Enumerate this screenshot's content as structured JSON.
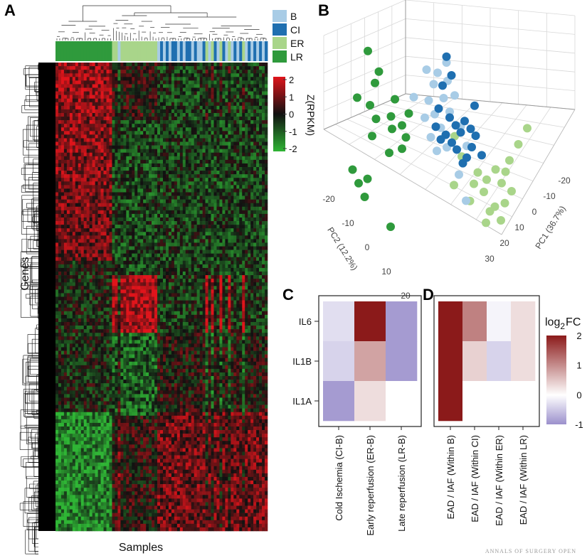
{
  "panels": {
    "A": "A",
    "B": "B",
    "C": "C",
    "D": "D"
  },
  "watermark": "ANNALS OF SURGERY OPEN",
  "chart_data": [
    {
      "id": "A",
      "type": "heatmap",
      "title": "",
      "xlabel": "Samples",
      "ylabel": "Genes",
      "colorbar": {
        "label": "Z(RPKM)",
        "ticks": [
          "2",
          "1",
          "0",
          "-1",
          "-2"
        ],
        "range": [
          -2,
          2
        ],
        "colors": {
          "low": "#2fb535",
          "mid": "#111111",
          "high": "#e0141b"
        }
      },
      "sample_groups": [
        {
          "label": "B",
          "color": "#a8cce6"
        },
        {
          "label": "CI",
          "color": "#1f6fb0"
        },
        {
          "label": "ER",
          "color": "#a9d58a"
        },
        {
          "label": "LR",
          "color": "#2f9a3c"
        }
      ],
      "column_annotation_order": [
        "LR",
        "LR",
        "LR",
        "LR",
        "LR",
        "LR",
        "LR",
        "LR",
        "LR",
        "LR",
        "LR",
        "LR",
        "LR",
        "LR",
        "LR",
        "LR",
        "LR",
        "LR",
        "LR",
        "LR",
        "ER",
        "ER",
        "B",
        "ER",
        "ER",
        "ER",
        "ER",
        "ER",
        "ER",
        "ER",
        "ER",
        "ER",
        "ER",
        "ER",
        "ER",
        "ER",
        "B",
        "CI",
        "B",
        "CI",
        "B",
        "CI",
        "CI",
        "B",
        "CI",
        "B",
        "CI",
        "CI",
        "B",
        "CI",
        "B",
        "B",
        "CI",
        "ER",
        "B",
        "ER",
        "CI",
        "B",
        "ER",
        "CI",
        "B",
        "ER",
        "B",
        "CI",
        "B",
        "CI",
        "ER",
        "B",
        "CI",
        "B",
        "CI",
        "B",
        "CI",
        "B",
        "CI"
      ],
      "value_blocks": [
        {
          "samples": "LR",
          "gene_region": "top",
          "mean_z": 1.5
        },
        {
          "samples": "LR",
          "gene_region": "bottom",
          "mean_z": -1.5
        },
        {
          "samples": "ER",
          "gene_region": "middle",
          "mean_z": 1.6
        },
        {
          "samples": "ER",
          "gene_region": "lower-middle",
          "mean_z": -1.2
        },
        {
          "samples": "B/CI",
          "gene_region": "bottom",
          "mean_z": 1.0
        },
        {
          "samples": "B/CI",
          "gene_region": "top",
          "mean_z": -0.5
        }
      ]
    },
    {
      "id": "B",
      "type": "scatter",
      "title": "",
      "xlabel": "PC1 (36.7%)",
      "ylabel": "PC2 (12.2%)",
      "zlabel": "",
      "pc1_ticks": [
        "-20",
        "-10",
        "0",
        "10",
        "20",
        "30"
      ],
      "pc2_ticks": [
        "-20",
        "-10",
        "0",
        "10",
        "20"
      ],
      "series": [
        {
          "name": "LR",
          "color": "#2f9a3c",
          "points": [
            [
              -10,
              25,
              6
            ],
            [
              -8,
              22,
              5
            ],
            [
              -9,
              20,
              4
            ],
            [
              -10,
              16,
              4
            ],
            [
              -13,
              17,
              2
            ],
            [
              -9,
              14,
              3
            ],
            [
              -10,
              11,
              2
            ],
            [
              -6,
              15,
              3
            ],
            [
              -4,
              14,
              2
            ],
            [
              -5,
              18,
              4
            ],
            [
              -2,
              16,
              5
            ],
            [
              -3,
              12,
              3
            ],
            [
              -4,
              10,
              2
            ],
            [
              -7,
              9,
              0
            ],
            [
              -15,
              5,
              -3
            ],
            [
              -14,
              3,
              -4
            ],
            [
              -12,
              4,
              -3
            ],
            [
              -13,
              1,
              -5
            ],
            [
              -8,
              -3,
              -6
            ],
            [
              -6,
              13,
              2
            ]
          ]
        },
        {
          "name": "ER",
          "color": "#a9d58a",
          "points": [
            [
              22,
              18,
              6
            ],
            [
              20,
              15,
              5
            ],
            [
              18,
              12,
              4
            ],
            [
              17,
              10,
              3
            ],
            [
              16,
              8,
              2
            ],
            [
              15,
              10,
              3
            ],
            [
              13,
              8,
              2
            ],
            [
              12,
              6,
              0
            ],
            [
              11,
              9,
              1
            ],
            [
              10,
              7,
              0
            ],
            [
              14,
              4,
              -1
            ],
            [
              13,
              3,
              -1
            ],
            [
              15,
              2,
              -2
            ],
            [
              12,
              1,
              -2
            ],
            [
              16,
              5,
              -1
            ],
            [
              8,
              11,
              2
            ],
            [
              7,
              14,
              4
            ],
            [
              9,
              4,
              -1
            ],
            [
              6,
              6,
              0
            ],
            [
              18,
              7,
              2
            ]
          ]
        },
        {
          "name": "B",
          "color": "#a8cce6",
          "points": [
            [
              4,
              24,
              6
            ],
            [
              6,
              26,
              7
            ],
            [
              3,
              22,
              5
            ],
            [
              5,
              20,
              5
            ],
            [
              2,
              19,
              5
            ],
            [
              7,
              21,
              4
            ],
            [
              3,
              17,
              4
            ],
            [
              1,
              16,
              4
            ],
            [
              4,
              15,
              3
            ],
            [
              6,
              18,
              4
            ],
            [
              2,
              13,
              3
            ],
            [
              5,
              12,
              2
            ],
            [
              8,
              16,
              3
            ],
            [
              3,
              11,
              2
            ],
            [
              9,
              13,
              2
            ],
            [
              7,
              8,
              0
            ],
            [
              8,
              4,
              -2
            ],
            [
              -1,
              19,
              5
            ],
            [
              6,
              23,
              6
            ],
            [
              2,
              24,
              7
            ]
          ]
        },
        {
          "name": "CI",
          "color": "#1f6fb0",
          "points": [
            [
              7,
              24,
              7
            ],
            [
              5,
              22,
              6
            ],
            [
              4,
              18,
              5
            ],
            [
              6,
              17,
              4
            ],
            [
              7,
              16,
              3
            ],
            [
              3,
              15,
              3
            ],
            [
              8,
              15,
              3
            ],
            [
              9,
              17,
              4
            ],
            [
              5,
              14,
              3
            ],
            [
              10,
              16,
              3
            ],
            [
              11,
              15,
              3
            ],
            [
              6,
              13,
              2
            ],
            [
              9,
              11,
              2
            ],
            [
              12,
              12,
              2
            ],
            [
              8,
              10,
              1
            ],
            [
              7,
              12,
              2
            ],
            [
              4,
              13,
              3
            ],
            [
              10,
              13,
              2
            ],
            [
              6,
              27,
              7
            ],
            [
              11,
              20,
              4
            ]
          ]
        }
      ]
    },
    {
      "id": "C",
      "type": "heatmap",
      "title": "",
      "rows": [
        "IL6",
        "IL1B",
        "IL1A"
      ],
      "columns": [
        "Cold Ischemia (CI-B)",
        "Early reperfusion (ER-B)",
        "Late reperfusion (LR-B)"
      ],
      "values": [
        [
          -0.3,
          2.0,
          -0.9
        ],
        [
          -0.4,
          0.8,
          -0.9
        ],
        [
          -0.9,
          0.3,
          0.0
        ]
      ],
      "range": [
        -1,
        2
      ]
    },
    {
      "id": "D",
      "type": "heatmap",
      "title": "",
      "rows": [
        "IL6",
        "IL1B",
        "IL1A"
      ],
      "columns": [
        "EAD / IAF (Within B)",
        "EAD / IAF (Within CI)",
        "EAD / IAF (Within ER)",
        "EAD / IAF (Within LR)"
      ],
      "values": [
        [
          2.0,
          1.1,
          -0.1,
          0.3
        ],
        [
          2.0,
          0.4,
          -0.4,
          0.3
        ],
        [
          2.0,
          0.0,
          0.0,
          0.0
        ]
      ],
      "range": [
        -1,
        2
      ],
      "colorbar": {
        "label_base": "log",
        "label_sub": "2",
        "label_suffix": "FC",
        "ticks": [
          "2",
          "1",
          "0",
          "-1"
        ]
      }
    }
  ]
}
